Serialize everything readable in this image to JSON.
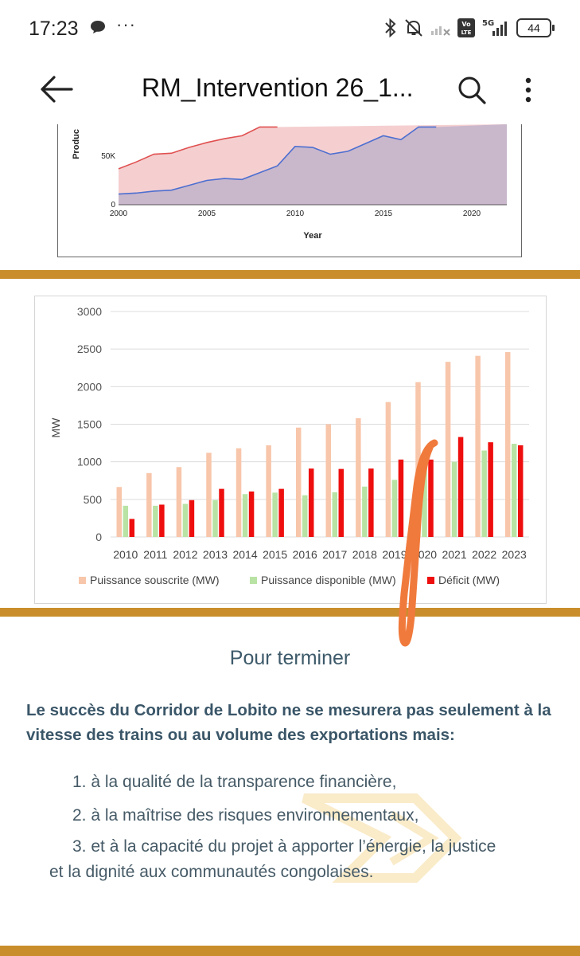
{
  "status_bar": {
    "time": "17:23",
    "more": "···",
    "battery": "44",
    "network": "5G",
    "volte": "Vo LTE"
  },
  "app_bar": {
    "title": "RM_Intervention 26_1..."
  },
  "previous_chart": {
    "ylabel": "Produc",
    "xlabel": "Year",
    "y_tick_labels": [
      "0",
      "50K"
    ],
    "x_tick_labels": [
      "2000",
      "2005",
      "2010",
      "2015",
      "2020"
    ],
    "chart_data": {
      "type": "area",
      "x": [
        2000,
        2001,
        2002,
        2003,
        2004,
        2005,
        2006,
        2007,
        2008,
        2009,
        2010,
        2011,
        2012,
        2013,
        2014,
        2015,
        2016,
        2017,
        2018
      ],
      "series": [
        {
          "color": "#e05050",
          "values": [
            37000,
            44000,
            52000,
            53000,
            59000,
            64000,
            68000,
            71000,
            80000,
            80000,
            null,
            null,
            null,
            null,
            null,
            null,
            null,
            null,
            null
          ]
        },
        {
          "color": "#4d6fd0",
          "values": [
            11000,
            12000,
            14000,
            15000,
            20000,
            25000,
            27000,
            26000,
            33000,
            40000,
            60000,
            59000,
            52000,
            55000,
            63000,
            71000,
            67000,
            80000,
            80000
          ]
        }
      ],
      "ylim": [
        0,
        80000
      ],
      "xlim": [
        2000,
        2022
      ]
    }
  },
  "chart_data": {
    "type": "bar",
    "categories": [
      "2010",
      "2011",
      "2012",
      "2013",
      "2014",
      "2015",
      "2016",
      "2017",
      "2018",
      "2019",
      "2020",
      "2021",
      "2022",
      "2023"
    ],
    "series": [
      {
        "name": "Puissance souscrite (MW)",
        "color": "#f8c6aa",
        "values": [
          665,
          850,
          930,
          1120,
          1180,
          1220,
          1455,
          1500,
          1580,
          1795,
          2060,
          2330,
          2410,
          2460
        ]
      },
      {
        "name": "Puissance disponible (MW)",
        "color": "#b9e3a4",
        "values": [
          415,
          415,
          440,
          490,
          570,
          590,
          555,
          595,
          670,
          760,
          1040,
          1000,
          1150,
          1240
        ]
      },
      {
        "name": "Déficit (MW)",
        "color": "#ee0e0e",
        "values": [
          240,
          430,
          490,
          640,
          605,
          640,
          910,
          905,
          910,
          1030,
          1030,
          1330,
          1260,
          1220
        ]
      }
    ],
    "ylabel": "MW",
    "ylim": [
      0,
      3000
    ],
    "y_ticks": [
      "0",
      "500",
      "1000",
      "1500",
      "2000",
      "2500",
      "3000"
    ],
    "grid": true,
    "legend": "bottom"
  },
  "conclusion": {
    "title": "Pour terminer",
    "lead": "Le succès du Corridor de Lobito ne se mesurera pas seulement à la vitesse des trains ou au volume des exportations mais:",
    "items": [
      {
        "number": "1.",
        "text": "à la qualité de la transparence financière,"
      },
      {
        "number": "2.",
        "text": "à la maîtrise des risques environnementaux,"
      },
      {
        "number": "3.",
        "text": "et à la capacité du projet à apporter l’énergie, la justice"
      }
    ],
    "item3_continuation": "et la  dignité aux communautés congolaises."
  },
  "colors": {
    "gold_divider": "#c98e2b",
    "heading": "#3d5a6a",
    "annotation": "#f07a3c"
  }
}
